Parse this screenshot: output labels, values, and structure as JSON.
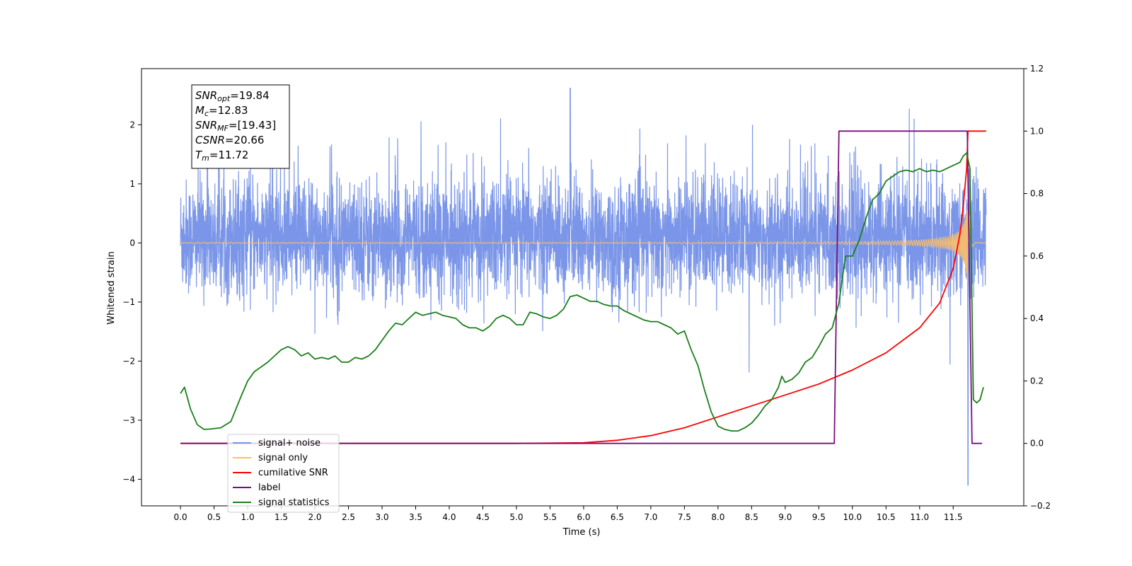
{
  "chart_data": {
    "type": "line",
    "xlabel": "Time (s)",
    "ylabel": "Whitened strain",
    "x_ticks": [
      "0.0",
      "0.5",
      "1.0",
      "1.5",
      "2.0",
      "2.5",
      "3.0",
      "3.5",
      "4.0",
      "4.5",
      "5.0",
      "5.5",
      "6.0",
      "6.5",
      "7.0",
      "7.5",
      "8.0",
      "8.5",
      "9.0",
      "9.5",
      "10.0",
      "10.5",
      "11.0",
      "11.5"
    ],
    "y_ticks_left": [
      "2",
      "1",
      "0",
      "−1",
      "−2",
      "−3",
      "−4"
    ],
    "y_ticks_right": [
      "1.2",
      "1.0",
      "0.8",
      "0.6",
      "0.4",
      "0.2",
      "0.0",
      "−0.2"
    ],
    "xlim": [
      -0.58,
      12.55
    ],
    "ylim_left": [
      -4.45,
      2.95
    ],
    "ylim_right": [
      -0.2,
      1.2
    ],
    "grid": false,
    "legend_position": "lower-left",
    "info_box": {
      "lines": [
        {
          "sym": "SNR",
          "sub": "opt",
          "text": "=19.84"
        },
        {
          "sym": "M",
          "sub": "c",
          "text": "=12.83"
        },
        {
          "sym": "SNR",
          "sub": "MF",
          "text": "=[19.43]"
        },
        {
          "sym": "CSNR",
          "sub": "",
          "text": "=20.66"
        },
        {
          "sym": "T",
          "sub": "m",
          "text": "=11.72"
        }
      ]
    },
    "series": [
      {
        "name": "signal+ noise",
        "axis": "left",
        "color": "#7b96e8",
        "envelope": {
          "x_range": [
            0.0,
            11.99
          ],
          "typical_range": [
            -1.0,
            1.2
          ],
          "peak_max": 2.62,
          "peak_min": -4.1,
          "peak_max_x": 5.8,
          "peak_min_x": 11.72
        }
      },
      {
        "name": "signal only",
        "axis": "left",
        "color": "#ffbf66",
        "chirp": {
          "x_range": [
            0.0,
            11.99
          ],
          "merger_x": 11.72,
          "peak_amplitude": 1.1,
          "base_amplitude": 0.005
        }
      },
      {
        "name": "cumilative SNR",
        "axis": "right",
        "color": "#ff0000",
        "x": [
          0.0,
          5.0,
          6.0,
          6.5,
          7.0,
          7.5,
          8.0,
          8.5,
          9.0,
          9.5,
          10.0,
          10.5,
          11.0,
          11.3,
          11.5,
          11.6,
          11.65,
          11.7,
          11.72,
          11.99
        ],
        "values": [
          0.0,
          0.0,
          0.002,
          0.01,
          0.025,
          0.05,
          0.085,
          0.12,
          0.155,
          0.19,
          0.235,
          0.29,
          0.37,
          0.45,
          0.56,
          0.67,
          0.76,
          0.88,
          1.0,
          1.0
        ]
      },
      {
        "name": "label",
        "axis": "right",
        "color": "#7b0f7e",
        "x": [
          0.0,
          9.73,
          9.8,
          11.71,
          11.78,
          11.93
        ],
        "values": [
          0.0,
          0.0,
          1.0,
          1.0,
          0.0,
          0.0
        ]
      },
      {
        "name": "signal statistics",
        "axis": "right",
        "color": "#1a7f1a",
        "x": [
          0.0,
          0.06,
          0.15,
          0.25,
          0.35,
          0.45,
          0.6,
          0.75,
          0.9,
          1.0,
          1.1,
          1.2,
          1.3,
          1.4,
          1.5,
          1.6,
          1.7,
          1.8,
          1.9,
          2.0,
          2.1,
          2.2,
          2.3,
          2.4,
          2.5,
          2.6,
          2.7,
          2.8,
          2.9,
          3.0,
          3.1,
          3.2,
          3.3,
          3.4,
          3.5,
          3.6,
          3.7,
          3.8,
          3.9,
          4.0,
          4.1,
          4.2,
          4.3,
          4.4,
          4.5,
          4.6,
          4.7,
          4.8,
          4.9,
          5.0,
          5.1,
          5.2,
          5.3,
          5.4,
          5.5,
          5.6,
          5.7,
          5.8,
          5.9,
          6.0,
          6.1,
          6.2,
          6.3,
          6.4,
          6.5,
          6.6,
          6.7,
          6.8,
          6.9,
          7.0,
          7.1,
          7.2,
          7.3,
          7.4,
          7.5,
          7.55,
          7.6,
          7.7,
          7.8,
          7.9,
          8.0,
          8.1,
          8.2,
          8.3,
          8.4,
          8.5,
          8.6,
          8.7,
          8.8,
          8.9,
          8.95,
          9.0,
          9.1,
          9.2,
          9.3,
          9.4,
          9.5,
          9.6,
          9.7,
          9.8,
          9.85,
          9.9,
          10.0,
          10.1,
          10.2,
          10.3,
          10.4,
          10.5,
          10.6,
          10.7,
          10.8,
          10.9,
          11.0,
          11.1,
          11.2,
          11.3,
          11.4,
          11.5,
          11.6,
          11.65,
          11.7,
          11.75,
          11.8,
          11.85,
          11.9,
          11.95
        ],
        "values": [
          0.16,
          0.18,
          0.11,
          0.06,
          0.045,
          0.046,
          0.05,
          0.07,
          0.15,
          0.2,
          0.23,
          0.245,
          0.26,
          0.28,
          0.3,
          0.31,
          0.3,
          0.28,
          0.29,
          0.27,
          0.275,
          0.27,
          0.28,
          0.26,
          0.26,
          0.275,
          0.27,
          0.28,
          0.3,
          0.33,
          0.36,
          0.385,
          0.38,
          0.4,
          0.42,
          0.41,
          0.415,
          0.42,
          0.41,
          0.405,
          0.4,
          0.38,
          0.37,
          0.37,
          0.36,
          0.375,
          0.4,
          0.41,
          0.4,
          0.38,
          0.38,
          0.42,
          0.415,
          0.405,
          0.4,
          0.41,
          0.43,
          0.47,
          0.475,
          0.465,
          0.455,
          0.455,
          0.445,
          0.44,
          0.44,
          0.425,
          0.415,
          0.405,
          0.395,
          0.39,
          0.39,
          0.38,
          0.37,
          0.35,
          0.36,
          0.33,
          0.3,
          0.25,
          0.17,
          0.1,
          0.055,
          0.045,
          0.04,
          0.04,
          0.05,
          0.065,
          0.09,
          0.12,
          0.14,
          0.18,
          0.215,
          0.195,
          0.205,
          0.225,
          0.26,
          0.275,
          0.31,
          0.35,
          0.37,
          0.45,
          0.53,
          0.6,
          0.6,
          0.65,
          0.72,
          0.78,
          0.8,
          0.84,
          0.855,
          0.87,
          0.875,
          0.87,
          0.88,
          0.87,
          0.875,
          0.87,
          0.88,
          0.89,
          0.9,
          0.92,
          0.93,
          0.88,
          0.14,
          0.13,
          0.14,
          0.18
        ]
      }
    ]
  }
}
